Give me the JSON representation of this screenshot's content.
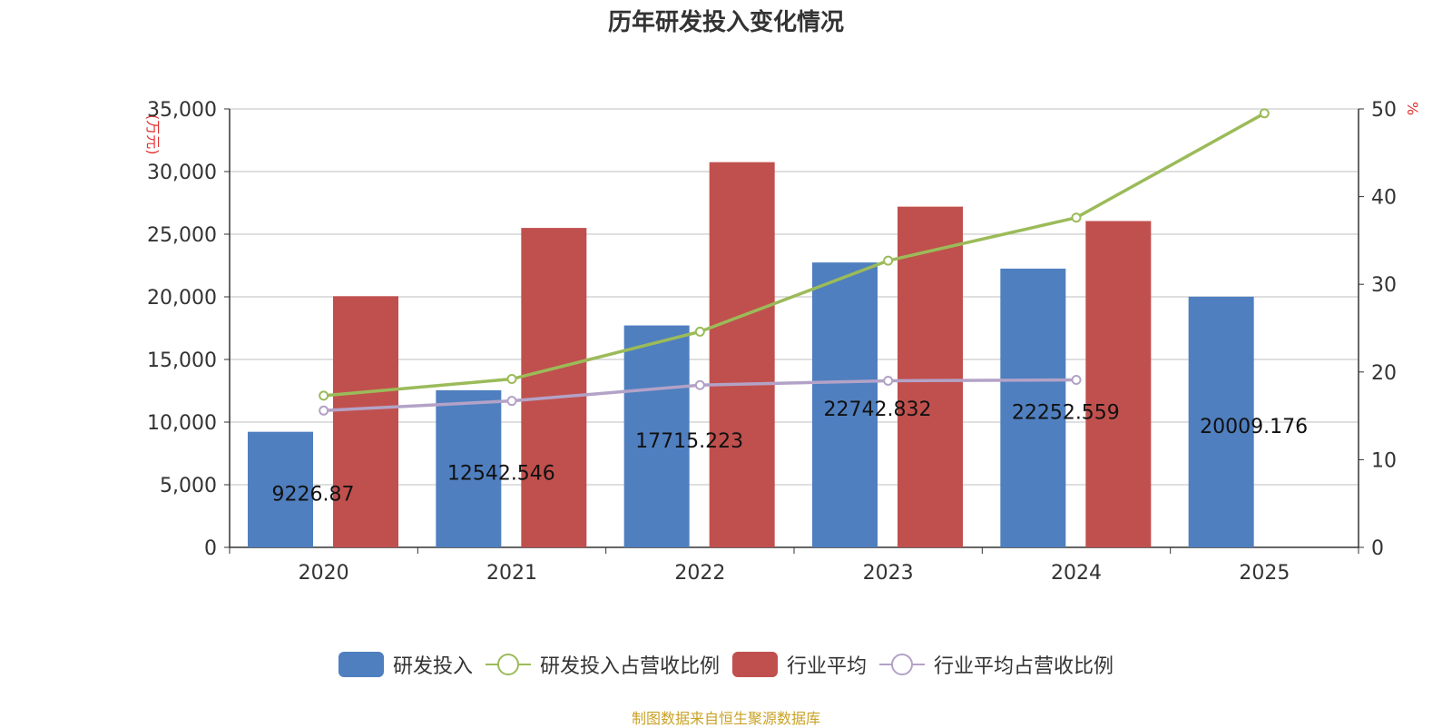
{
  "title": "历年研发投入变化情况",
  "source": "制图数据来自恒生聚源数据库",
  "unit_left": "(万元)",
  "unit_right": "%",
  "legend": [
    {
      "label": "研发投入",
      "kind": "bar",
      "color": "#4f7fbf"
    },
    {
      "label": "研发投入占营收比例",
      "kind": "line",
      "color": "#9bbb59"
    },
    {
      "label": "行业平均",
      "kind": "bar",
      "color": "#c0504d"
    },
    {
      "label": "行业平均占营收比例",
      "kind": "line",
      "color": "#b3a2c7"
    }
  ],
  "chart_data": {
    "type": "bar",
    "categories": [
      "2020",
      "2021",
      "2022",
      "2023",
      "2024",
      "2025"
    ],
    "ylim_left": [
      0,
      35000
    ],
    "yticks_left": [
      "0",
      "5,000",
      "10,000",
      "15,000",
      "20,000",
      "25,000",
      "30,000",
      "35,000"
    ],
    "ylim_right": [
      0,
      50
    ],
    "yticks_right": [
      "0",
      "10",
      "20",
      "30",
      "40",
      "50"
    ],
    "grid": true,
    "legend_position": "bottom",
    "series": [
      {
        "name": "研发投入",
        "type": "bar",
        "axis": "left",
        "color": "#4f7fbf",
        "values": [
          9226.87,
          12542.546,
          17715.223,
          22742.832,
          22252.559,
          20009.176
        ],
        "labels": [
          "9226.87",
          "12542.546",
          "17715.223",
          "22742.832",
          "22252.559",
          "20009.176"
        ]
      },
      {
        "name": "行业平均",
        "type": "bar",
        "axis": "left",
        "color": "#c0504d",
        "values": [
          20050,
          25500,
          30750,
          27200,
          26050,
          null
        ]
      },
      {
        "name": "研发投入占营收比例",
        "type": "line",
        "axis": "right",
        "color": "#9bbb59",
        "values": [
          17.3,
          19.2,
          24.6,
          32.7,
          37.6,
          49.5
        ]
      },
      {
        "name": "行业平均占营收比例",
        "type": "line",
        "axis": "right",
        "color": "#b3a2c7",
        "values": [
          15.6,
          16.7,
          18.5,
          19.0,
          19.1,
          null
        ]
      }
    ]
  }
}
